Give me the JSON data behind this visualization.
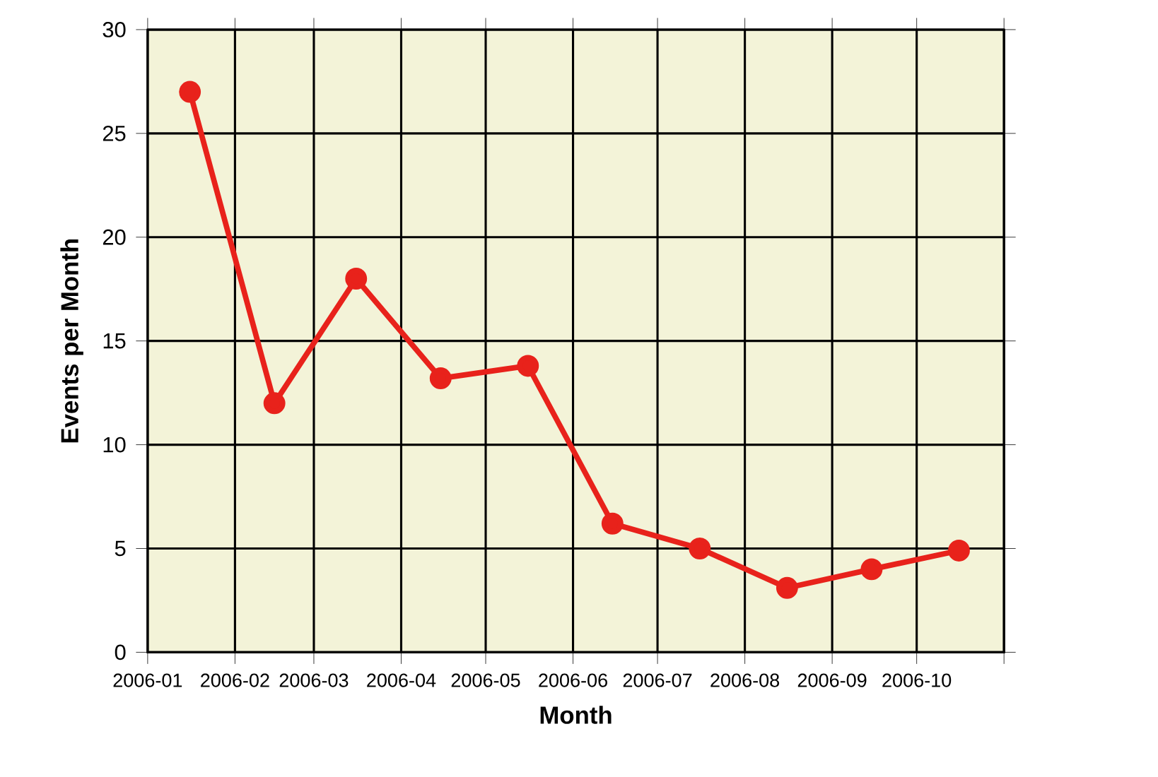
{
  "chart_data": {
    "type": "line",
    "xlabel": "Month",
    "ylabel": "Events per Month",
    "x": [
      "2006-01-16",
      "2006-02-15",
      "2006-03-16",
      "2006-04-15",
      "2006-05-16",
      "2006-06-15",
      "2006-07-16",
      "2006-08-16",
      "2006-09-15",
      "2006-10-16"
    ],
    "series": [
      {
        "color": "#e8221b",
        "values": [
          27,
          12,
          18,
          13.2,
          13.8,
          6.2,
          5,
          3.1,
          4,
          4.9
        ]
      }
    ],
    "xlim": [
      "2006-01",
      "2006-11"
    ],
    "xticks": [
      "2006-01",
      "2006-02",
      "2006-03",
      "2006-04",
      "2006-05",
      "2006-06",
      "2006-07",
      "2006-08",
      "2006-09",
      "2006-10",
      {
        "value": "2006-11",
        "label": null
      }
    ],
    "ylim": [
      0,
      30
    ],
    "yticks": [
      0,
      5,
      10,
      15,
      20,
      25,
      30
    ],
    "grid": true,
    "marker": "circle",
    "line_style": "solid"
  }
}
